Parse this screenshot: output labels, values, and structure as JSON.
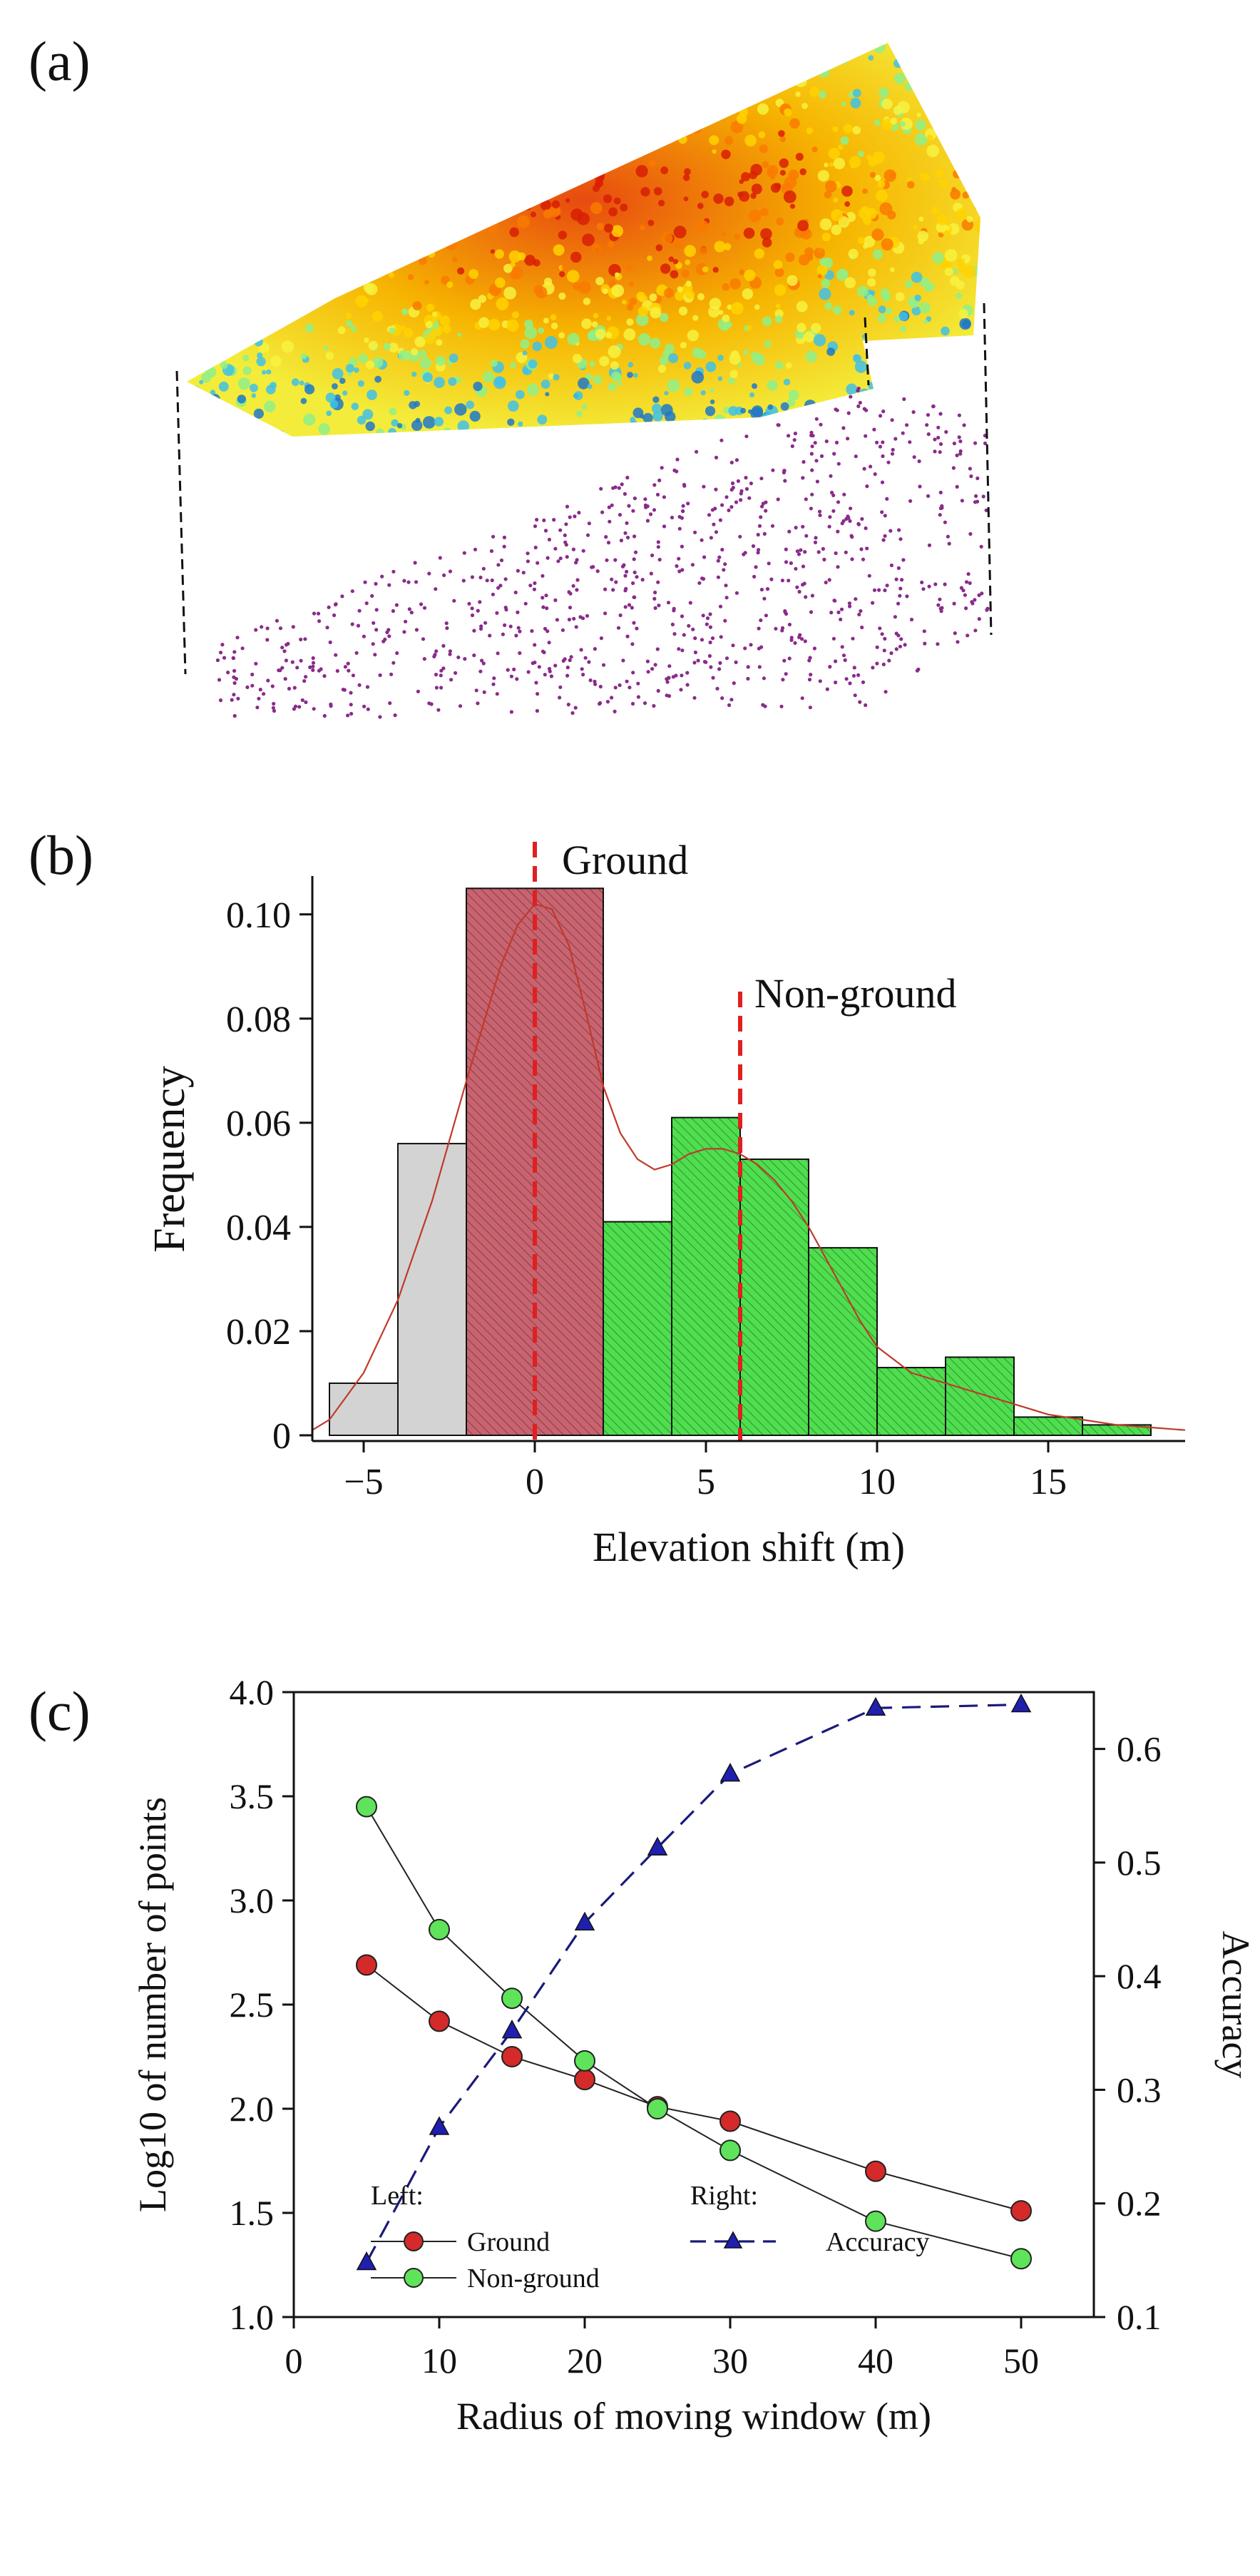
{
  "panels": {
    "a": {
      "label": "(a)"
    },
    "b": {
      "label": "(b)"
    },
    "c": {
      "label": "(c)"
    }
  },
  "colors": {
    "ground_bar": "#c8636f",
    "nonground_bar": "#4ede4e",
    "negative_bar": "#d3d3d3",
    "density_curve": "#c0392b",
    "dashed_marker": "#e02020",
    "ground_point": "#d42a2a",
    "nonground_point": "#5fe35a",
    "accuracy_line": "#1a1a7a",
    "accuracy_marker": "#1f1fb0",
    "ground_cloud_point": "#8a2b8a"
  },
  "point_cloud": {
    "description_colors": [
      "#d81e05",
      "#f97a00",
      "#ffd200",
      "#f7f240",
      "#8ef08a",
      "#3ec1e8",
      "#1f78c8"
    ]
  },
  "chart_data": [
    {
      "id": "b",
      "type": "bar",
      "title": "",
      "xlabel": "Elevation shift (m)",
      "ylabel": "Frequency",
      "xlim": [
        -6.5,
        19
      ],
      "ylim": [
        0,
        0.106
      ],
      "xticks": [
        -5,
        0,
        5,
        10,
        15
      ],
      "xtick_labels": [
        "−5",
        "0",
        "5",
        "10",
        "15"
      ],
      "yticks": [
        0,
        0.02,
        0.04,
        0.06,
        0.08,
        0.1
      ],
      "ytick_labels": [
        "0",
        "0.02",
        "0.04",
        "0.06",
        "0.08",
        "0.10"
      ],
      "bins": [
        {
          "x0": -6,
          "x1": -4,
          "value": 0.01,
          "group": "negative"
        },
        {
          "x0": -4,
          "x1": -2,
          "value": 0.056,
          "group": "negative"
        },
        {
          "x0": -2,
          "x1": 2,
          "value": 0.105,
          "group": "ground"
        },
        {
          "x0": 2,
          "x1": 4,
          "value": 0.041,
          "group": "nonground"
        },
        {
          "x0": 4,
          "x1": 6,
          "value": 0.061,
          "group": "nonground"
        },
        {
          "x0": 6,
          "x1": 8,
          "value": 0.053,
          "group": "nonground"
        },
        {
          "x0": 8,
          "x1": 10,
          "value": 0.036,
          "group": "nonground"
        },
        {
          "x0": 10,
          "x1": 12,
          "value": 0.013,
          "group": "nonground"
        },
        {
          "x0": 12,
          "x1": 14,
          "value": 0.015,
          "group": "nonground"
        },
        {
          "x0": 14,
          "x1": 16,
          "value": 0.0035,
          "group": "nonground"
        },
        {
          "x0": 16,
          "x1": 18,
          "value": 0.002,
          "group": "nonground"
        }
      ],
      "density_curve": {
        "x": [
          -6.5,
          -6,
          -5,
          -4,
          -3,
          -2,
          -1,
          -0.5,
          0,
          0.5,
          1,
          1.5,
          2,
          2.5,
          3,
          3.5,
          4,
          4.5,
          5,
          5.5,
          6,
          6.5,
          7,
          7.5,
          8,
          8.5,
          9,
          9.5,
          10,
          11,
          12,
          13,
          14,
          15,
          16,
          17,
          18,
          19
        ],
        "y": [
          0.001,
          0.003,
          0.012,
          0.026,
          0.045,
          0.068,
          0.09,
          0.098,
          0.102,
          0.101,
          0.094,
          0.081,
          0.067,
          0.058,
          0.053,
          0.051,
          0.052,
          0.054,
          0.055,
          0.055,
          0.054,
          0.052,
          0.049,
          0.045,
          0.04,
          0.034,
          0.028,
          0.022,
          0.017,
          0.012,
          0.01,
          0.008,
          0.006,
          0.004,
          0.003,
          0.002,
          0.0015,
          0.001
        ]
      },
      "markers": [
        {
          "x": 0,
          "label": "Ground"
        },
        {
          "x": 6,
          "label": "Non-ground"
        }
      ]
    },
    {
      "id": "c",
      "type": "line",
      "title": "",
      "xlabel": "Radius of moving window (m)",
      "ylabel": "Log10 of number of points",
      "y2label": "Accuracy",
      "xlim": [
        0,
        55
      ],
      "ylim": [
        1.0,
        4.0
      ],
      "y2lim": [
        0.1,
        0.65
      ],
      "xticks": [
        0,
        10,
        20,
        30,
        40,
        50
      ],
      "xtick_labels": [
        "0",
        "10",
        "20",
        "30",
        "40",
        "50"
      ],
      "yticks": [
        1.0,
        1.5,
        2.0,
        2.5,
        3.0,
        3.5,
        4.0
      ],
      "ytick_labels": [
        "1.0",
        "1.5",
        "2.0",
        "2.5",
        "3.0",
        "3.5",
        "4.0"
      ],
      "y2ticks": [
        0.1,
        0.2,
        0.3,
        0.4,
        0.5,
        0.6
      ],
      "y2tick_labels": [
        "0.1",
        "0.2",
        "0.3",
        "0.4",
        "0.5",
        "0.6"
      ],
      "x": [
        5,
        10,
        15,
        20,
        25,
        30,
        40,
        50
      ],
      "series": [
        {
          "name": "Ground",
          "axis": "left",
          "values": [
            2.69,
            2.42,
            2.25,
            2.14,
            2.01,
            1.94,
            1.7,
            1.51
          ]
        },
        {
          "name": "Non-ground",
          "axis": "left",
          "values": [
            3.45,
            2.86,
            2.53,
            2.23,
            2.0,
            1.8,
            1.46,
            1.28
          ]
        },
        {
          "name": "Accuracy",
          "axis": "right",
          "values": [
            0.148,
            0.267,
            0.352,
            0.447,
            0.513,
            0.578,
            0.636,
            0.639
          ]
        }
      ],
      "legend": {
        "left_title": "Left:",
        "right_title": "Right:",
        "placement": "bottom"
      }
    }
  ]
}
